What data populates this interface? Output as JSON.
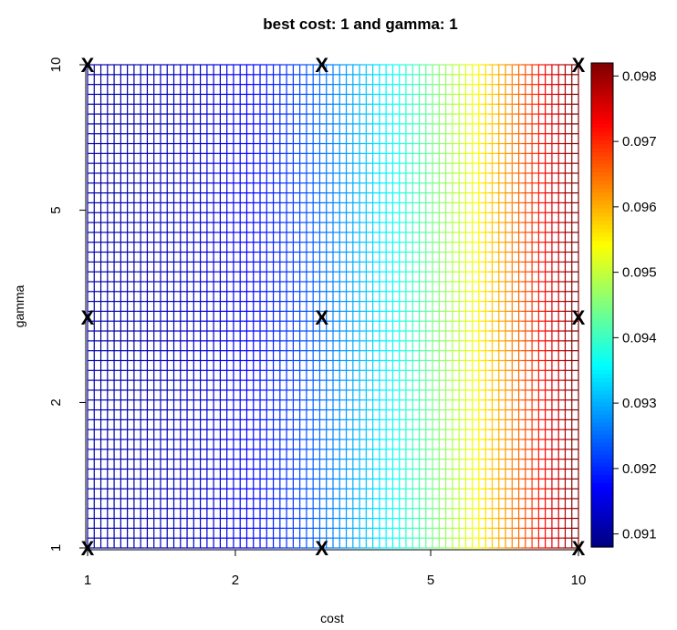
{
  "chart_data": {
    "type": "heatmap",
    "title": "best cost: 1  and gamma: 1",
    "xlabel": "cost",
    "ylabel": "gamma",
    "x_scale": "log",
    "y_scale": "log",
    "xlim": [
      1,
      10
    ],
    "ylim": [
      1,
      10
    ],
    "x_ticks": [
      1,
      2,
      5,
      10
    ],
    "y_ticks": [
      1,
      2,
      5,
      10
    ],
    "x_tick_labels": [
      "1",
      "2",
      "5",
      "10"
    ],
    "y_tick_labels": [
      "1",
      "2",
      "5",
      "10"
    ],
    "grid_points": {
      "cost": [
        1,
        3,
        10
      ],
      "gamma": [
        1,
        3,
        10
      ],
      "marker": "X"
    },
    "value_range": [
      0.0908,
      0.0982
    ],
    "colorbar": {
      "position": "right",
      "ticks": [
        0.091,
        0.092,
        0.093,
        0.094,
        0.095,
        0.096,
        0.097,
        0.098
      ],
      "tick_labels": [
        "0.091",
        "0.092",
        "0.093",
        "0.094",
        "0.095",
        "0.096",
        "0.097",
        "0.098"
      ],
      "palette": [
        "#00007F",
        "#0000FF",
        "#007FFF",
        "#00FFFF",
        "#7FFF7F",
        "#FFFF00",
        "#FF7F00",
        "#FF0000",
        "#7F0000"
      ]
    },
    "surface_note": "error increases with cost; nearly constant across gamma",
    "x_gridlines": 75,
    "y_gridlines": 50
  }
}
